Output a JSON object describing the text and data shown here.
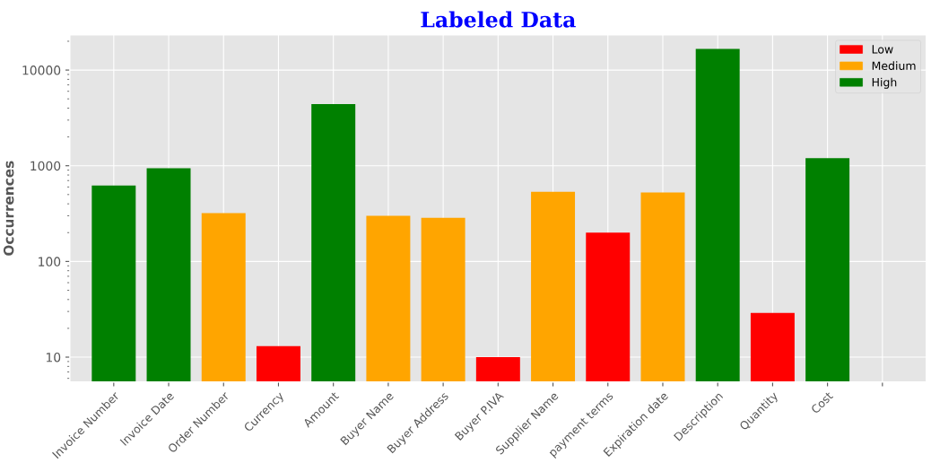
{
  "chart_data": {
    "type": "bar",
    "title": "Labeled Data",
    "ylabel": "Occurrences",
    "categories": [
      "Invoice Number",
      "Invoice Date",
      "Order Number",
      "Currency",
      "Amount",
      "Buyer Name",
      "Buyer Address",
      "Buyer P.IVA",
      "Supplier Name",
      "payment terms",
      "Expiration date",
      "Description",
      "Quantity",
      "Cost",
      null
    ],
    "series": [
      {
        "name": "Low",
        "color": "#ff0000",
        "values": [
          null,
          null,
          null,
          13,
          null,
          null,
          null,
          10,
          null,
          200,
          null,
          null,
          29,
          null,
          null
        ]
      },
      {
        "name": "Medium",
        "color": "#ffa500",
        "values": [
          null,
          null,
          320,
          null,
          null,
          300,
          285,
          null,
          535,
          null,
          525,
          null,
          null,
          null,
          null
        ]
      },
      {
        "name": "High",
        "color": "#008000",
        "values": [
          620,
          940,
          null,
          null,
          4400,
          null,
          null,
          null,
          null,
          null,
          null,
          16600,
          null,
          1200,
          null
        ]
      }
    ],
    "log": "y",
    "ylim": [
      5.5,
      23400
    ],
    "yticks": [
      10,
      100,
      1000,
      10000
    ],
    "grid": true,
    "legend": "top right"
  }
}
